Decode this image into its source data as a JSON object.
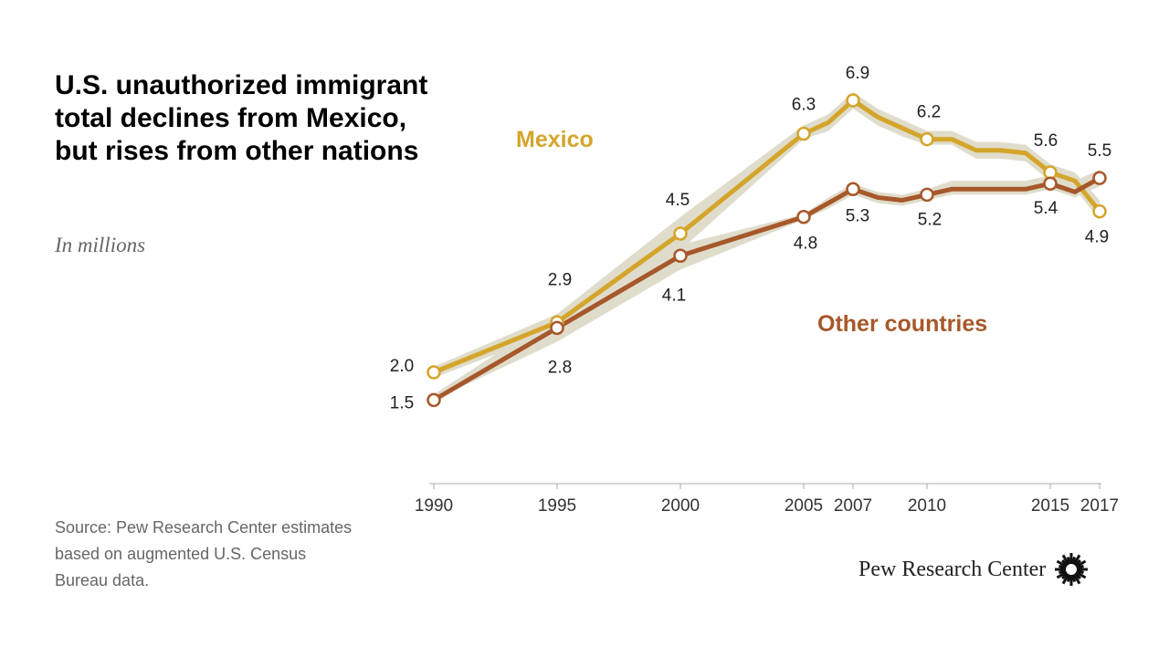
{
  "title": "U.S. unauthorized immigrant total declines from Mexico, but rises from other nations",
  "subtitle": "In millions",
  "source": "Source: Pew Research Center estimates based on augmented U.S. Census Bureau data.",
  "brand": "Pew Research Center",
  "colors": {
    "mexico": "#D4A52B",
    "other": "#A6582A",
    "band": "#E0DCCB",
    "axis": "#AAAAAA"
  },
  "chart_data": {
    "type": "line",
    "title": "U.S. unauthorized immigrant total declines from Mexico, but rises from other nations",
    "ylabel": "In millions",
    "xlabel": "",
    "xlim": [
      1990,
      2017
    ],
    "ylim": [
      0,
      7
    ],
    "grid": false,
    "x_ticks": [
      1990,
      1995,
      2000,
      2005,
      2007,
      2010,
      2015,
      2017
    ],
    "series": [
      {
        "name": "Mexico",
        "label": "Mexico",
        "x": [
          1990,
          1995,
          2000,
          2005,
          2006,
          2007,
          2008,
          2009,
          2010,
          2011,
          2012,
          2013,
          2014,
          2015,
          2016,
          2017
        ],
        "values": [
          2.0,
          2.9,
          4.5,
          6.3,
          6.5,
          6.9,
          6.6,
          6.4,
          6.2,
          6.2,
          6.0,
          6.0,
          5.95,
          5.6,
          5.45,
          4.9
        ],
        "band_low": [
          1.9,
          2.75,
          4.2,
          6.2,
          6.35,
          6.75,
          6.45,
          6.25,
          6.1,
          6.1,
          5.85,
          5.85,
          5.8,
          5.45,
          5.3,
          4.75
        ],
        "band_high": [
          2.1,
          3.05,
          4.8,
          6.45,
          6.65,
          7.05,
          6.75,
          6.55,
          6.35,
          6.35,
          6.15,
          6.15,
          6.1,
          5.75,
          5.6,
          5.1
        ],
        "markers": [
          {
            "x": 1990,
            "value": 2.0,
            "label": "2.0"
          },
          {
            "x": 1995,
            "value": 2.9,
            "label": "2.9"
          },
          {
            "x": 2000,
            "value": 4.5,
            "label": "4.5"
          },
          {
            "x": 2005,
            "value": 6.3,
            "label": "6.3"
          },
          {
            "x": 2007,
            "value": 6.9,
            "label": "6.9"
          },
          {
            "x": 2010,
            "value": 6.2,
            "label": "6.2"
          },
          {
            "x": 2015,
            "value": 5.6,
            "label": "5.6"
          },
          {
            "x": 2017,
            "value": 4.9,
            "label": "4.9"
          }
        ]
      },
      {
        "name": "Other countries",
        "label": "Other countries",
        "x": [
          1990,
          1995,
          2000,
          2005,
          2006,
          2007,
          2008,
          2009,
          2010,
          2011,
          2012,
          2013,
          2014,
          2015,
          2016,
          2017
        ],
        "values": [
          1.5,
          2.8,
          4.1,
          4.8,
          5.05,
          5.3,
          5.15,
          5.1,
          5.2,
          5.3,
          5.3,
          5.3,
          5.3,
          5.4,
          5.25,
          5.5
        ],
        "band_low": [
          1.5,
          2.55,
          3.85,
          4.75,
          4.95,
          5.2,
          5.05,
          5.0,
          5.1,
          5.2,
          5.2,
          5.2,
          5.2,
          5.3,
          5.15,
          5.35
        ],
        "band_high": [
          1.6,
          3.05,
          4.3,
          4.85,
          5.15,
          5.4,
          5.25,
          5.2,
          5.3,
          5.45,
          5.45,
          5.45,
          5.45,
          5.55,
          5.45,
          5.65
        ],
        "markers": [
          {
            "x": 1990,
            "value": 1.5,
            "label": "1.5"
          },
          {
            "x": 1995,
            "value": 2.8,
            "label": "2.8"
          },
          {
            "x": 2000,
            "value": 4.1,
            "label": "4.1"
          },
          {
            "x": 2005,
            "value": 4.8,
            "label": "4.8"
          },
          {
            "x": 2007,
            "value": 5.3,
            "label": "5.3"
          },
          {
            "x": 2010,
            "value": 5.2,
            "label": "5.2"
          },
          {
            "x": 2015,
            "value": 5.4,
            "label": "5.4"
          },
          {
            "x": 2017,
            "value": 5.5,
            "label": "5.5"
          }
        ]
      }
    ]
  }
}
